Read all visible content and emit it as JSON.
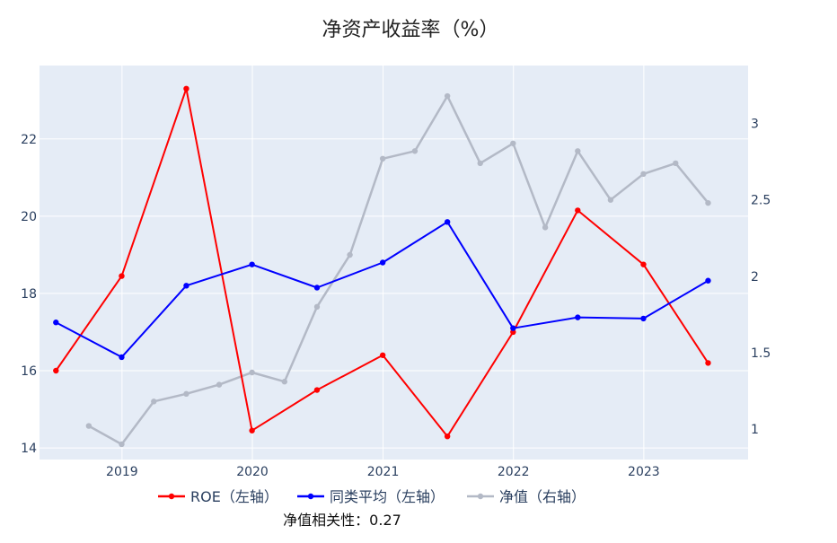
{
  "chart_data": {
    "type": "line",
    "title": "净资产收益率（%）",
    "x_ticks": [
      "2019",
      "2020",
      "2021",
      "2022",
      "2023"
    ],
    "y_left": {
      "ticks": [
        14,
        16,
        18,
        20,
        22
      ],
      "range": [
        13.7,
        23.9
      ]
    },
    "y_right": {
      "ticks": [
        "1",
        "1.5",
        "2",
        "2.5",
        "3"
      ],
      "range": [
        0.8,
        3.38
      ]
    },
    "series": [
      {
        "name": "ROE（左轴）",
        "axis": "left",
        "color": "#ff0000",
        "points": [
          [
            "2018-06-30",
            16.0
          ],
          [
            "2018-12-31",
            18.45
          ],
          [
            "2019-06-30",
            23.3
          ],
          [
            "2019-12-31",
            14.45
          ],
          [
            "2020-06-30",
            15.5
          ],
          [
            "2020-12-31",
            16.4
          ],
          [
            "2021-06-30",
            14.3
          ],
          [
            "2021-12-31",
            17.0
          ],
          [
            "2022-06-30",
            20.15
          ],
          [
            "2022-12-31",
            18.75
          ],
          [
            "2023-06-30",
            16.2
          ]
        ]
      },
      {
        "name": "同类平均（左轴）",
        "axis": "left",
        "color": "#0000ff",
        "points": [
          [
            "2018-06-30",
            17.25
          ],
          [
            "2018-12-31",
            16.35
          ],
          [
            "2019-06-30",
            18.2
          ],
          [
            "2019-12-31",
            18.75
          ],
          [
            "2020-06-30",
            18.15
          ],
          [
            "2020-12-31",
            18.8
          ],
          [
            "2021-06-30",
            19.85
          ],
          [
            "2021-12-31",
            17.1
          ],
          [
            "2022-06-30",
            17.38
          ],
          [
            "2022-12-31",
            17.35
          ],
          [
            "2023-06-30",
            18.33
          ]
        ]
      },
      {
        "name": "净值（右轴）",
        "axis": "right",
        "color": "#b3b9c6",
        "points": [
          [
            "2018-09-30",
            1.02
          ],
          [
            "2018-12-31",
            0.9
          ],
          [
            "2019-03-31",
            1.18
          ],
          [
            "2019-06-30",
            1.23
          ],
          [
            "2019-09-30",
            1.29
          ],
          [
            "2019-12-31",
            1.37
          ],
          [
            "2020-03-31",
            1.31
          ],
          [
            "2020-06-30",
            1.8
          ],
          [
            "2020-09-30",
            2.14
          ],
          [
            "2020-12-31",
            2.77
          ],
          [
            "2021-03-31",
            2.82
          ],
          [
            "2021-06-30",
            3.18
          ],
          [
            "2021-09-30",
            2.74
          ],
          [
            "2021-12-31",
            2.87
          ],
          [
            "2022-03-31",
            2.32
          ],
          [
            "2022-06-30",
            2.82
          ],
          [
            "2022-09-30",
            2.5
          ],
          [
            "2022-12-31",
            2.67
          ],
          [
            "2023-03-31",
            2.74
          ],
          [
            "2023-06-30",
            2.48
          ]
        ]
      }
    ],
    "legend": {
      "placement": "bottom"
    },
    "annotation": "净值相关性：0.27",
    "grid": true,
    "plot_background": "#e5ecf6"
  }
}
